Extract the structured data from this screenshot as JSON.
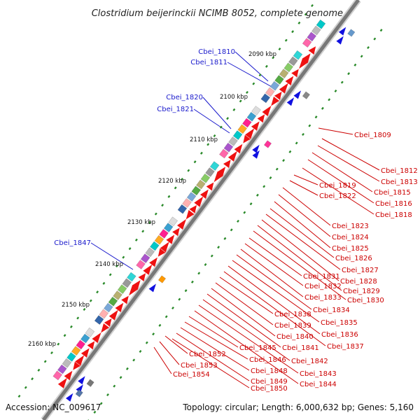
{
  "title": "Clostridium beijerinckii NCIMB 8052, complete genome",
  "accession": "Accession: NC_009617",
  "topology": "Topology: circular; Length: 6,000,632 bp; Genes: 5,160",
  "colors": {
    "forward_gene": "#1010e0",
    "reverse_gene": "#ee1111",
    "label_red": "#cc0000",
    "label_blue": "#1a1acc",
    "backbone": "#666666",
    "tick": "#2a8a2a"
  },
  "kbp_ticks": [
    "2090 kbp",
    "2100 kbp",
    "2110 kbp",
    "2120 kbp",
    "2130 kbp",
    "2140 kbp",
    "2150 kbp",
    "2160 kbp"
  ],
  "forward_labels": [
    "Cbei_1810",
    "Cbei_1811",
    "Cbei_1820",
    "Cbei_1821",
    "Cbei_1847"
  ],
  "reverse_labels": [
    "Cbei_1809",
    "Cbei_1812",
    "Cbei_1813",
    "Cbei_1815",
    "Cbei_1816",
    "Cbei_1818",
    "Cbei_1819",
    "Cbei_1822",
    "Cbei_1823",
    "Cbei_1824",
    "Cbei_1825",
    "Cbei_1826",
    "Cbei_1827",
    "Cbei_1828",
    "Cbei_1829",
    "Cbei_1830",
    "Cbei_1831",
    "Cbei_1832",
    "Cbei_1833",
    "Cbei_1834",
    "Cbei_1835",
    "Cbei_1836",
    "Cbei_1837",
    "Cbei_1838",
    "Cbei_1839",
    "Cbei_1840",
    "Cbei_1841",
    "Cbei_1842",
    "Cbei_1843",
    "Cbei_1844",
    "Cbei_1845",
    "Cbei_1846",
    "Cbei_1848",
    "Cbei_1849",
    "Cbei_1850",
    "Cbei_1852",
    "Cbei_1853",
    "Cbei_1854"
  ]
}
